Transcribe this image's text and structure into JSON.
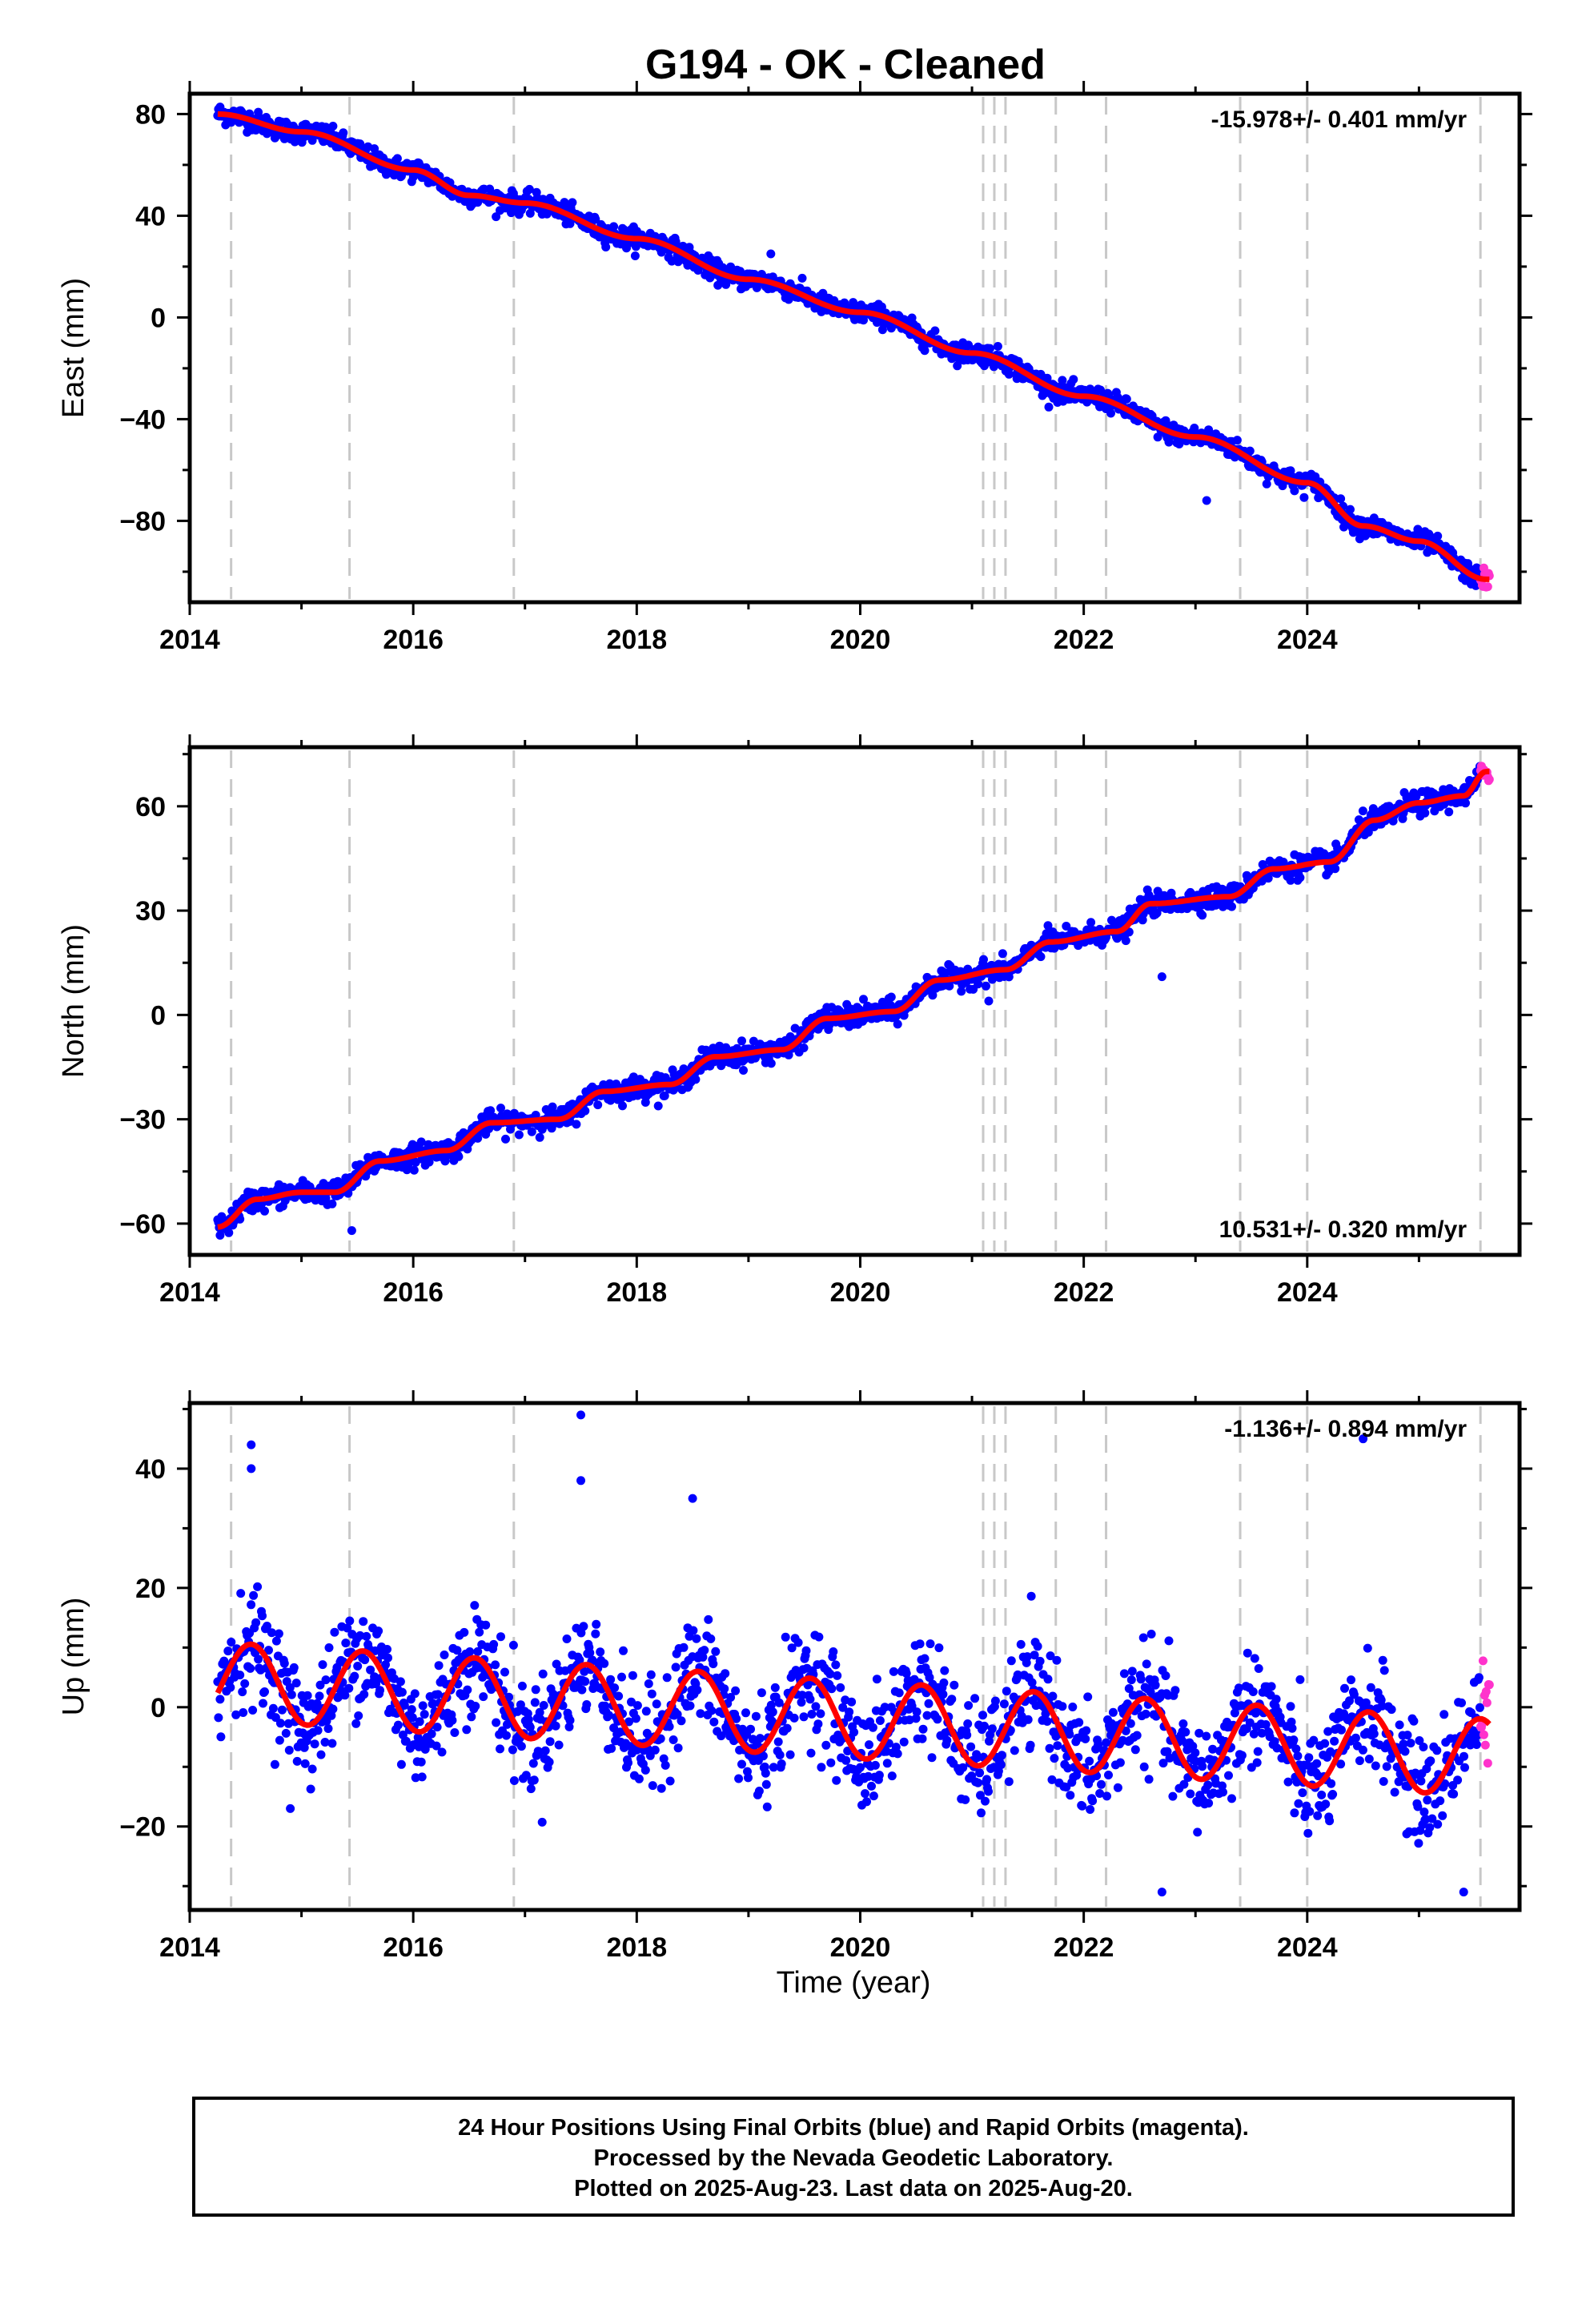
{
  "chart_data": {
    "type": "scatter",
    "title": "G194  - OK - Cleaned",
    "colors": {
      "final_orbits": "#0000ff",
      "rapid_orbits": "#ff33cc",
      "model": "#ff0000",
      "events": "#c8c8c8"
    },
    "xlim": [
      2014,
      2025.9
    ],
    "x_ticks": [
      2014,
      2016,
      2018,
      2020,
      2022,
      2024
    ],
    "event_lines": [
      2014.37,
      2015.43,
      2016.9,
      2021.1,
      2021.2,
      2021.3,
      2021.75,
      2022.2,
      2023.4,
      2024.0,
      2025.55
    ],
    "data_span": [
      2014.25,
      2025.63
    ],
    "rapid_start": 2025.55,
    "xlabel": "Time (year)",
    "panels": [
      {
        "id": "east",
        "ylabel": "East (mm)",
        "ylim": [
          -112,
          88
        ],
        "y_ticks": [
          80,
          40,
          0,
          -40,
          -80
        ],
        "rate_label": "-15.978+/- 0.401 mm/yr",
        "rate_position": "top-right",
        "model_points": [
          [
            2014.25,
            80
          ],
          [
            2015.0,
            73
          ],
          [
            2016.0,
            58
          ],
          [
            2016.5,
            48
          ],
          [
            2017.0,
            45
          ],
          [
            2018.0,
            31
          ],
          [
            2019.0,
            15
          ],
          [
            2020.0,
            2
          ],
          [
            2021.0,
            -14
          ],
          [
            2022.0,
            -31
          ],
          [
            2023.0,
            -47
          ],
          [
            2024.0,
            -65
          ],
          [
            2024.5,
            -82
          ],
          [
            2025.0,
            -88
          ],
          [
            2025.6,
            -103
          ]
        ],
        "scatter_noise": 2.0,
        "outliers": [
          [
            2019.2,
            25
          ],
          [
            2023.1,
            -72
          ]
        ]
      },
      {
        "id": "north",
        "ylabel": "North (mm)",
        "ylim": [
          -69,
          77
        ],
        "y_ticks": [
          60,
          30,
          0,
          -30,
          -60
        ],
        "rate_label": "10.531+/- 0.320 mm/yr",
        "rate_position": "bottom-right",
        "model_points": [
          [
            2014.25,
            -61
          ],
          [
            2014.6,
            -53
          ],
          [
            2015.0,
            -51
          ],
          [
            2015.3,
            -51
          ],
          [
            2015.7,
            -42
          ],
          [
            2016.3,
            -39
          ],
          [
            2016.7,
            -31
          ],
          [
            2017.3,
            -30
          ],
          [
            2017.7,
            -22
          ],
          [
            2018.3,
            -20
          ],
          [
            2018.7,
            -12
          ],
          [
            2019.3,
            -10
          ],
          [
            2019.7,
            -1
          ],
          [
            2020.3,
            1
          ],
          [
            2020.7,
            10
          ],
          [
            2021.3,
            13
          ],
          [
            2021.7,
            21
          ],
          [
            2022.3,
            24
          ],
          [
            2022.6,
            32
          ],
          [
            2023.3,
            34
          ],
          [
            2023.7,
            42
          ],
          [
            2024.2,
            44
          ],
          [
            2024.6,
            56
          ],
          [
            2025.0,
            61
          ],
          [
            2025.4,
            63
          ],
          [
            2025.6,
            70
          ]
        ],
        "scatter_noise": 1.6,
        "outliers": [
          [
            2015.45,
            -62
          ],
          [
            2022.7,
            11
          ],
          [
            2021.15,
            4
          ]
        ]
      },
      {
        "id": "up",
        "ylabel": "Up (mm)",
        "ylim": [
          -34,
          51
        ],
        "y_ticks": [
          40,
          20,
          0,
          -20
        ],
        "rate_label": "-1.136+/- 0.894 mm/yr",
        "rate_position": "top-right",
        "model": {
          "offset": 4.4,
          "trend_per_year": -1.136,
          "annual_amplitude": 6.5,
          "peak_phase_year": 0.55,
          "epoch": 2014.25
        },
        "scatter_noise": 4.5,
        "outliers": [
          [
            2014.55,
            44
          ],
          [
            2014.55,
            40
          ],
          [
            2017.5,
            49
          ],
          [
            2017.5,
            38
          ],
          [
            2018.5,
            35
          ],
          [
            2024.5,
            45
          ],
          [
            2022.7,
            -31
          ],
          [
            2025.4,
            -31
          ],
          [
            2014.9,
            -17
          ]
        ]
      }
    ]
  },
  "footer": {
    "line1": "24 Hour Positions Using Final Orbits (blue) and Rapid Orbits (magenta).",
    "line2": "Processed by the Nevada Geodetic Laboratory.",
    "line3": "Plotted on 2025-Aug-23. Last data on 2025-Aug-20."
  }
}
